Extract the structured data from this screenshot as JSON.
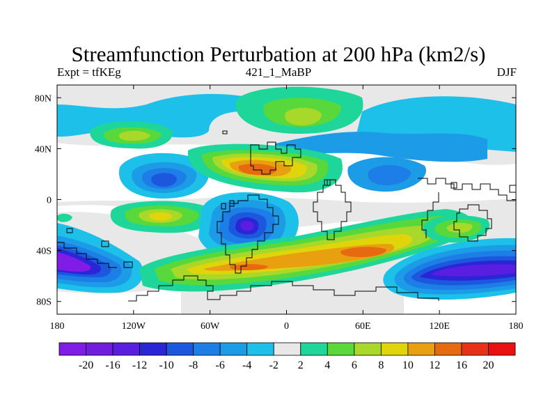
{
  "title": "Streamfunction Perturbation at 200 hPa (km2/s)",
  "subtitle_left": "Expt = tfKEg",
  "subtitle_center": "421_1_MaBP",
  "subtitle_right": "DJF",
  "colors": {
    "background_fill": "#e8e8e8",
    "outline": "#000000"
  },
  "chart_data": {
    "type": "heatmap",
    "projection": "cylindrical-equidistant",
    "xlim": [
      -180,
      180
    ],
    "ylim": [
      -90,
      90
    ],
    "x_ticks": [
      {
        "value": -180,
        "label": "180"
      },
      {
        "value": -120,
        "label": "120W"
      },
      {
        "value": -60,
        "label": "60W"
      },
      {
        "value": 0,
        "label": "0"
      },
      {
        "value": 60,
        "label": "60E"
      },
      {
        "value": 120,
        "label": "120E"
      },
      {
        "value": 180,
        "label": "180"
      }
    ],
    "y_ticks": [
      {
        "value": 80,
        "label": "80N"
      },
      {
        "value": 40,
        "label": "40N"
      },
      {
        "value": 0,
        "label": "0"
      },
      {
        "value": -40,
        "label": "40S"
      },
      {
        "value": -80,
        "label": "80S"
      }
    ],
    "colorbar": {
      "labels": [
        "-20",
        "-16",
        "-12",
        "-10",
        "-8",
        "-6",
        "-4",
        "-2",
        "2",
        "4",
        "6",
        "8",
        "10",
        "12",
        "16",
        "20"
      ],
      "colors": [
        "#7f1ce6",
        "#701ddd",
        "#5a1ee0",
        "#2a26d8",
        "#1c58de",
        "#1c7ee6",
        "#1c9ce6",
        "#1cc0e8",
        "#e8e8e8",
        "#1ed69a",
        "#58d83a",
        "#a8d82a",
        "#e0d40a",
        "#e8a010",
        "#e66a10",
        "#e83218",
        "#e81010"
      ]
    },
    "features": [
      {
        "name": "Southern Pacific negative",
        "lon": -172,
        "lat": -48,
        "value": -20
      },
      {
        "name": "South American negative",
        "lon": -25,
        "lat": -22,
        "value": -20
      },
      {
        "name": "Australian negative",
        "lon": 165,
        "lat": -55,
        "value": -20
      },
      {
        "name": "Central Pacific negative",
        "lon": -97,
        "lat": 15,
        "value": -12
      },
      {
        "name": "Central Asia negative",
        "lon": 80,
        "lat": 17,
        "value": -8
      },
      {
        "name": "Eurasia negative",
        "lon": 50,
        "lat": 42,
        "value": -6
      },
      {
        "name": "North Atlantic positive",
        "lon": -27,
        "lat": 25,
        "value": 16
      },
      {
        "name": "Southern Atlantic positive",
        "lon": -30,
        "lat": -52,
        "value": 16
      },
      {
        "name": "Indian Ocean positive",
        "lon": 75,
        "lat": -40,
        "value": 16
      },
      {
        "name": "Eastern Pacific positive",
        "lon": -110,
        "lat": -10,
        "value": 8
      },
      {
        "name": "North Pacific positive",
        "lon": -124,
        "lat": 52,
        "value": 8
      },
      {
        "name": "Arctic positive",
        "lon": 5,
        "lat": 62,
        "value": 8
      },
      {
        "name": "Australian positive",
        "lon": 135,
        "lat": -25,
        "value": 8
      }
    ]
  }
}
